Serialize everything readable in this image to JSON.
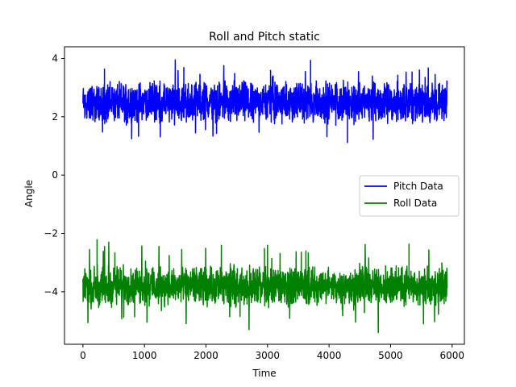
{
  "chart_data": {
    "type": "line",
    "title": "Roll and Pitch static",
    "xlabel": "Time",
    "ylabel": "Angle",
    "xlim": [
      -300,
      6200
    ],
    "ylim": [
      -5.8,
      4.4
    ],
    "xticks": [
      0,
      1000,
      2000,
      3000,
      4000,
      5000,
      6000
    ],
    "yticks": [
      -4,
      -2,
      0,
      2,
      4
    ],
    "grid": false,
    "legend_position": "center-right",
    "n_points": 5920,
    "series": [
      {
        "name": "Pitch Data",
        "color": "#0000ff",
        "mean": 2.5,
        "typical_range": [
          1.7,
          3.3
        ],
        "min": 1.1,
        "max": 3.95,
        "spikes": [
          [
            350,
            3.65
          ],
          [
            1500,
            3.95
          ],
          [
            1640,
            3.7
          ],
          [
            3700,
            3.95
          ],
          [
            4300,
            1.1
          ],
          [
            3050,
            3.6
          ],
          [
            5350,
            3.55
          ]
        ]
      },
      {
        "name": "Roll Data",
        "color": "#008000",
        "mean": -3.8,
        "typical_range": [
          -4.5,
          -3.0
        ],
        "min": -5.4,
        "max": -2.2,
        "spikes": [
          [
            230,
            -2.2
          ],
          [
            420,
            -2.3
          ],
          [
            2700,
            -5.3
          ],
          [
            4800,
            -5.4
          ],
          [
            5300,
            -2.35
          ],
          [
            2950,
            -2.5
          ]
        ]
      }
    ]
  }
}
